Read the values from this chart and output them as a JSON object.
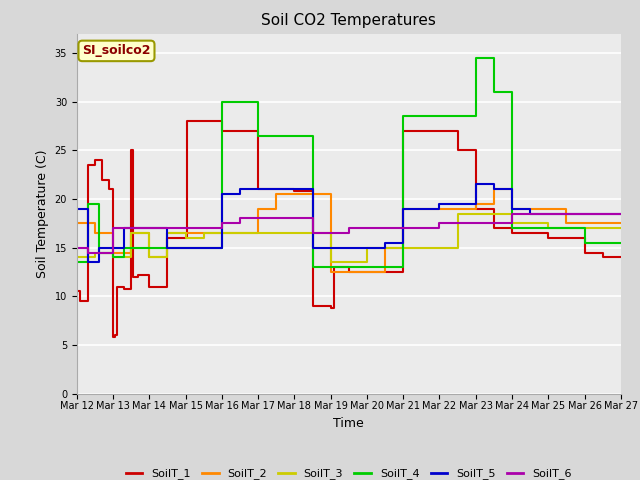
{
  "title": "Soil CO2 Temperatures",
  "xlabel": "Time",
  "ylabel": "Soil Temperature (C)",
  "annotation_text": "SI_soilco2",
  "ylim": [
    0,
    37
  ],
  "yticks": [
    0,
    5,
    10,
    15,
    20,
    25,
    30,
    35
  ],
  "fig_bg_color": "#d8d8d8",
  "plot_bg_color": "#ebebeb",
  "legend_labels": [
    "SoilT_1",
    "SoilT_2",
    "SoilT_3",
    "SoilT_4",
    "SoilT_5",
    "SoilT_6"
  ],
  "colors": {
    "SoilT_1": "#cc0000",
    "SoilT_2": "#ff8800",
    "SoilT_3": "#cccc00",
    "SoilT_4": "#00cc00",
    "SoilT_5": "#0000cc",
    "SoilT_6": "#aa00aa"
  },
  "x_dates": [
    12,
    13,
    14,
    15,
    16,
    17,
    18,
    19,
    20,
    21,
    22,
    23,
    24,
    25,
    26,
    27
  ],
  "SoilT_1": {
    "x": [
      12.0,
      12.1,
      12.3,
      12.5,
      12.7,
      12.9,
      13.0,
      13.05,
      13.1,
      13.3,
      13.5,
      13.55,
      13.7,
      14.0,
      14.05,
      14.5,
      14.8,
      15.0,
      15.05,
      16.0,
      16.5,
      17.0,
      17.5,
      18.0,
      18.5,
      18.9,
      19.0,
      19.1,
      19.5,
      20.0,
      20.5,
      21.0,
      21.5,
      22.0,
      22.5,
      23.0,
      23.5,
      24.0,
      24.5,
      25.0,
      25.5,
      26.0,
      26.5,
      27.0
    ],
    "y": [
      10.5,
      9.5,
      23.5,
      24.0,
      22.0,
      21.0,
      5.8,
      6.0,
      11.0,
      10.8,
      25.0,
      12.0,
      12.2,
      11.0,
      11.0,
      16.0,
      16.0,
      16.0,
      28.0,
      27.0,
      27.0,
      21.0,
      21.0,
      20.8,
      9.0,
      9.0,
      8.8,
      13.0,
      12.5,
      12.5,
      12.5,
      27.0,
      27.0,
      27.0,
      25.0,
      19.0,
      17.0,
      16.5,
      16.5,
      16.0,
      16.0,
      14.5,
      14.0,
      14.0
    ]
  },
  "SoilT_2": {
    "x": [
      12.0,
      12.5,
      13.0,
      13.5,
      14.0,
      14.5,
      15.0,
      15.5,
      16.0,
      16.5,
      17.0,
      17.5,
      18.0,
      18.5,
      19.0,
      19.5,
      20.0,
      20.5,
      21.0,
      21.5,
      22.0,
      22.5,
      23.0,
      23.5,
      24.0,
      24.5,
      25.0,
      25.5,
      26.0,
      26.5,
      27.0
    ],
    "y": [
      17.5,
      16.5,
      14.5,
      16.5,
      14.0,
      16.5,
      16.5,
      16.5,
      16.5,
      16.5,
      19.0,
      20.5,
      20.5,
      20.5,
      12.5,
      12.5,
      12.5,
      15.0,
      19.0,
      19.0,
      19.0,
      19.0,
      19.5,
      21.0,
      19.0,
      19.0,
      19.0,
      17.5,
      17.5,
      17.5,
      17.5
    ]
  },
  "SoilT_3": {
    "x": [
      12.0,
      12.5,
      13.0,
      13.5,
      14.0,
      14.5,
      15.0,
      15.5,
      16.0,
      16.5,
      17.0,
      17.5,
      18.0,
      18.5,
      19.0,
      19.5,
      20.0,
      20.5,
      21.0,
      21.5,
      22.0,
      22.5,
      23.0,
      23.5,
      24.0,
      24.5,
      25.0,
      25.5,
      26.0,
      26.5,
      27.0
    ],
    "y": [
      14.0,
      14.5,
      14.0,
      16.5,
      14.0,
      16.5,
      16.0,
      16.5,
      16.5,
      16.5,
      16.5,
      16.5,
      16.5,
      16.5,
      13.5,
      13.5,
      15.0,
      15.0,
      15.0,
      15.0,
      15.0,
      18.5,
      18.5,
      18.5,
      17.5,
      17.5,
      17.0,
      17.0,
      17.0,
      17.0,
      17.0
    ]
  },
  "SoilT_4": {
    "x": [
      12.0,
      12.3,
      12.6,
      13.0,
      13.3,
      14.0,
      14.5,
      15.0,
      15.5,
      16.0,
      16.5,
      17.0,
      17.5,
      18.0,
      18.5,
      19.0,
      19.5,
      20.0,
      20.5,
      21.0,
      21.5,
      22.0,
      22.5,
      23.0,
      23.5,
      24.0,
      24.5,
      25.0,
      25.5,
      26.0,
      26.5,
      27.0
    ],
    "y": [
      13.5,
      19.5,
      14.5,
      14.0,
      15.0,
      15.0,
      15.0,
      15.0,
      15.0,
      30.0,
      30.0,
      26.5,
      26.5,
      26.5,
      13.0,
      13.0,
      13.0,
      13.0,
      13.0,
      28.5,
      28.5,
      28.5,
      28.5,
      34.5,
      31.0,
      17.0,
      17.0,
      17.0,
      17.0,
      15.5,
      15.5,
      15.5
    ]
  },
  "SoilT_5": {
    "x": [
      12.0,
      12.3,
      12.6,
      13.0,
      13.3,
      14.0,
      14.5,
      15.0,
      15.5,
      16.0,
      16.5,
      17.0,
      17.5,
      18.0,
      18.5,
      19.0,
      19.5,
      20.0,
      20.5,
      21.0,
      21.5,
      22.0,
      22.5,
      23.0,
      23.5,
      24.0,
      24.5,
      25.0,
      25.5,
      26.0,
      26.5,
      27.0
    ],
    "y": [
      19.0,
      13.5,
      15.0,
      15.0,
      17.0,
      17.0,
      15.0,
      15.0,
      15.0,
      20.5,
      21.0,
      21.0,
      21.0,
      21.0,
      15.0,
      15.0,
      15.0,
      15.0,
      15.5,
      19.0,
      19.0,
      19.5,
      19.5,
      21.5,
      21.0,
      19.0,
      18.5,
      18.5,
      18.5,
      18.5,
      18.5,
      18.5
    ]
  },
  "SoilT_6": {
    "x": [
      12.0,
      12.3,
      12.6,
      13.0,
      13.3,
      14.0,
      14.5,
      15.0,
      15.5,
      16.0,
      16.5,
      17.0,
      17.5,
      18.0,
      18.5,
      19.0,
      19.5,
      20.0,
      20.5,
      21.0,
      21.5,
      22.0,
      22.5,
      23.0,
      23.5,
      24.0,
      24.5,
      25.0,
      25.5,
      26.0,
      26.5,
      27.0
    ],
    "y": [
      15.0,
      14.5,
      14.5,
      17.0,
      17.0,
      17.0,
      17.0,
      17.0,
      17.0,
      17.5,
      18.0,
      18.0,
      18.0,
      18.0,
      16.5,
      16.5,
      17.0,
      17.0,
      17.0,
      17.0,
      17.0,
      17.5,
      17.5,
      17.5,
      17.5,
      18.5,
      18.5,
      18.5,
      18.5,
      18.5,
      18.5,
      18.5
    ]
  }
}
